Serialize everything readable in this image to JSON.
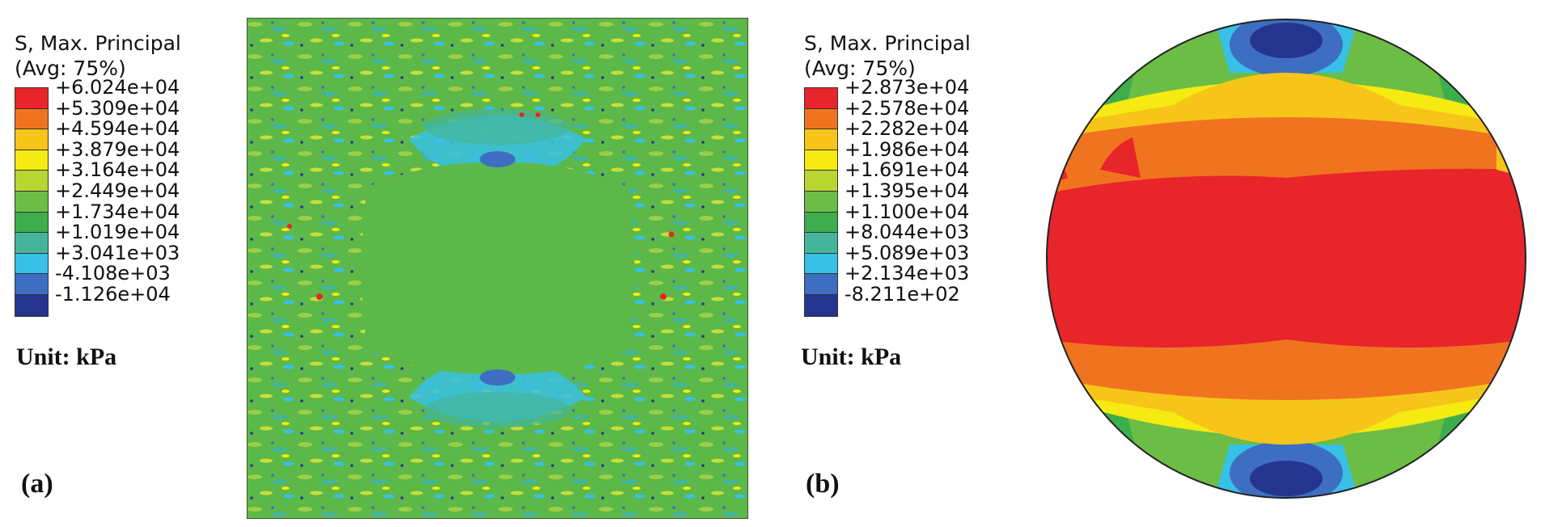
{
  "panel_a": {
    "legend_title_line1": "S, Max. Principal",
    "legend_title_line2": "(Avg: 75%)",
    "levels": [
      "+6.024e+04",
      "+5.309e+04",
      "+4.594e+04",
      "+3.879e+04",
      "+3.164e+04",
      "+2.449e+04",
      "+1.734e+04",
      "+1.019e+04",
      "+3.041e+03",
      "-4.108e+03",
      "-1.126e+04"
    ],
    "unit": "Unit: kPa",
    "label": "(a)"
  },
  "panel_b": {
    "legend_title_line1": "S, Max. Principal",
    "legend_title_line2": "(Avg: 75%)",
    "levels": [
      "+2.873e+04",
      "+2.578e+04",
      "+2.282e+04",
      "+1.986e+04",
      "+1.691e+04",
      "+1.395e+04",
      "+1.100e+04",
      "+8.044e+03",
      "+5.089e+03",
      "+2.134e+03",
      "-8.211e+02"
    ],
    "unit": "Unit: kPa",
    "label": "(b)"
  },
  "colorbar": [
    "#e8252a",
    "#f0741f",
    "#f7c51a",
    "#f5ea12",
    "#b8d531",
    "#6bbd45",
    "#3dae4b",
    "#45b59a",
    "#38c0e6",
    "#3e6ec1",
    "#25358f"
  ]
}
